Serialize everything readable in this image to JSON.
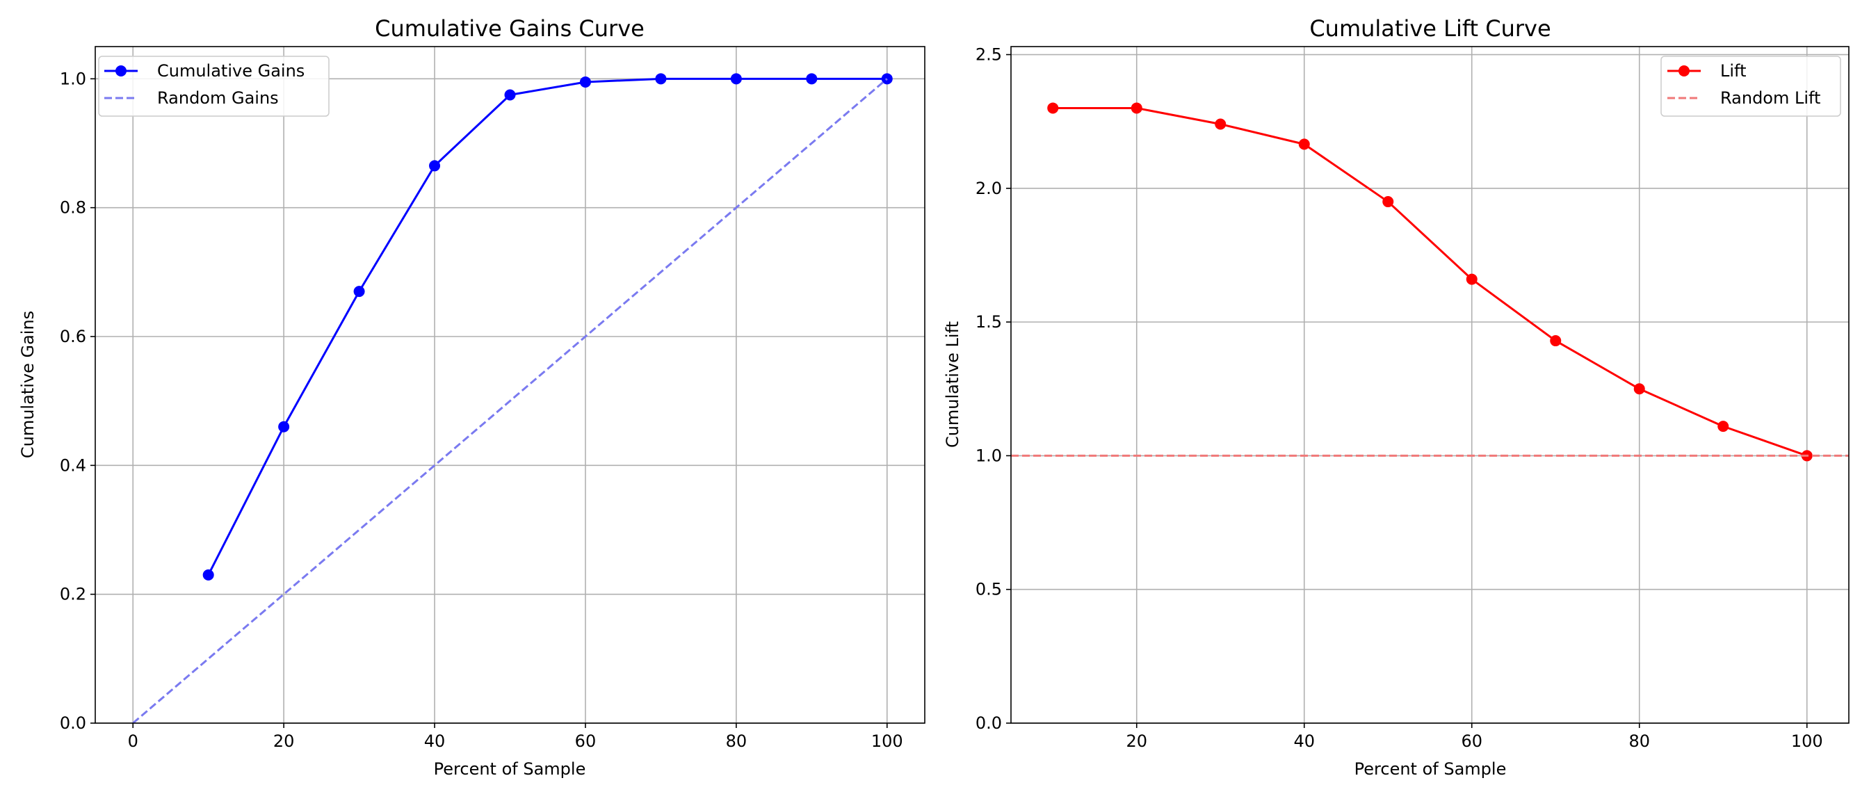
{
  "chart_data": [
    {
      "type": "line",
      "title": "Cumulative Gains Curve",
      "xlabel": "Percent of Sample",
      "ylabel": "Cumulative Gains",
      "xlim": [
        -5,
        105
      ],
      "ylim": [
        0,
        1.05
      ],
      "xticks": [
        0,
        20,
        40,
        60,
        80,
        100
      ],
      "xtick_labels": [
        "0",
        "20",
        "40",
        "60",
        "80",
        "100"
      ],
      "yticks": [
        0.0,
        0.2,
        0.4,
        0.6,
        0.8,
        1.0
      ],
      "ytick_labels": [
        "0.0",
        "0.2",
        "0.4",
        "0.6",
        "0.8",
        "1.0"
      ],
      "grid": true,
      "legend_position": "top-left",
      "series": [
        {
          "name": "Cumulative Gains",
          "color": "#0000ff",
          "style": "solid",
          "markers": true,
          "x": [
            10,
            20,
            30,
            40,
            50,
            60,
            70,
            80,
            90,
            100
          ],
          "y": [
            0.23,
            0.46,
            0.67,
            0.865,
            0.975,
            0.995,
            1.0,
            1.0,
            1.0,
            1.0
          ]
        },
        {
          "name": "Random Gains",
          "color": "#7a7af0",
          "style": "dashed",
          "markers": false,
          "x": [
            0,
            100
          ],
          "y": [
            0.0,
            1.0
          ]
        }
      ]
    },
    {
      "type": "line",
      "title": "Cumulative Lift Curve",
      "xlabel": "Percent of Sample",
      "ylabel": "Cumulative Lift",
      "xlim": [
        5,
        105
      ],
      "ylim": [
        0,
        2.53
      ],
      "xticks": [
        20,
        40,
        60,
        80,
        100
      ],
      "xtick_labels": [
        "20",
        "40",
        "60",
        "80",
        "100"
      ],
      "yticks": [
        0.0,
        0.5,
        1.0,
        1.5,
        2.0,
        2.5
      ],
      "ytick_labels": [
        "0.0",
        "0.5",
        "1.0",
        "1.5",
        "2.0",
        "2.5"
      ],
      "grid": true,
      "legend_position": "top-right",
      "series": [
        {
          "name": "Lift",
          "color": "#ff0000",
          "style": "solid",
          "markers": true,
          "x": [
            10,
            20,
            30,
            40,
            50,
            60,
            70,
            80,
            90,
            100
          ],
          "y": [
            2.3,
            2.3,
            2.24,
            2.165,
            1.95,
            1.66,
            1.43,
            1.25,
            1.11,
            1.0
          ]
        },
        {
          "name": "Random Lift",
          "color": "#f07878",
          "style": "dashed",
          "markers": false,
          "hline": 1.0
        }
      ]
    }
  ]
}
